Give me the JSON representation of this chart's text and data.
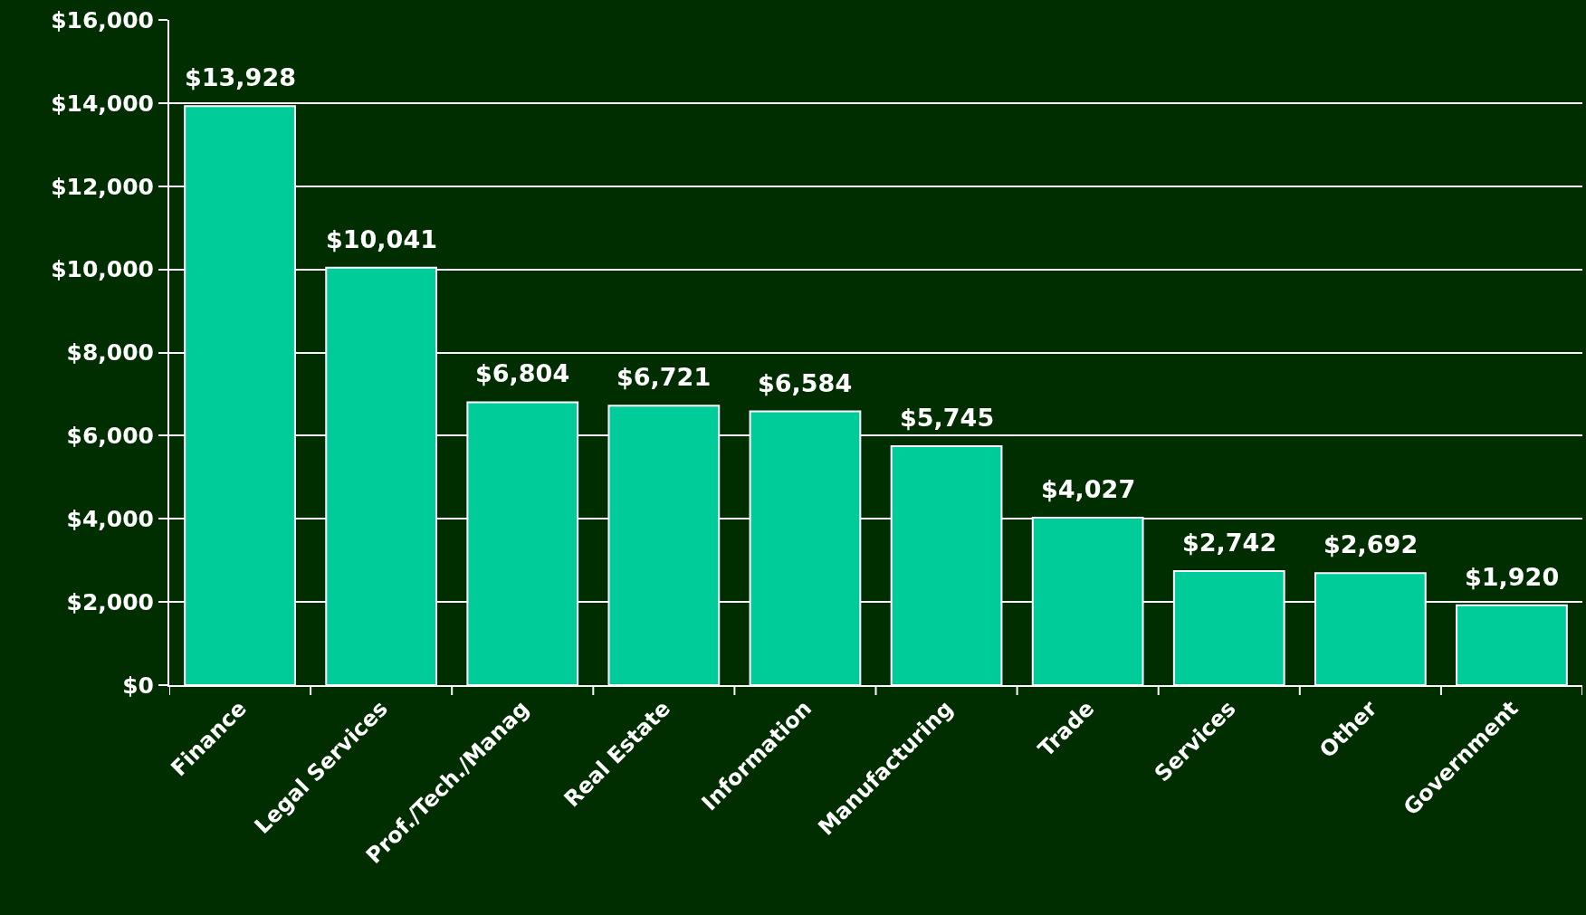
{
  "chart_data": {
    "type": "bar",
    "categories": [
      "Finance",
      "Legal Services",
      "Prof./Tech./Manag",
      "Real Estate",
      "Information",
      "Manufacturing",
      "Trade",
      "Services",
      "Other",
      "Government"
    ],
    "values": [
      13928,
      10041,
      6804,
      6721,
      6584,
      5745,
      4027,
      2742,
      2692,
      1920
    ],
    "value_labels": [
      "$13,928",
      "$10,041",
      "$6,804",
      "$6,721",
      "$6,584",
      "$5,745",
      "$4,027",
      "$2,742",
      "$2,692",
      "$1,920"
    ],
    "color": "#00cc99",
    "ylim": [
      0,
      16000
    ],
    "yticks": [
      {
        "value": 0,
        "label": "$0"
      },
      {
        "value": 2000,
        "label": "$2,000"
      },
      {
        "value": 4000,
        "label": "$4,000"
      },
      {
        "value": 6000,
        "label": "$6,000"
      },
      {
        "value": 8000,
        "label": "$8,000"
      },
      {
        "value": 10000,
        "label": "$10,000"
      },
      {
        "value": 12000,
        "label": "$12,000"
      },
      {
        "value": 14000,
        "label": "$14,000"
      },
      {
        "value": 16000,
        "label": "$16,000"
      }
    ],
    "grid": "y"
  }
}
